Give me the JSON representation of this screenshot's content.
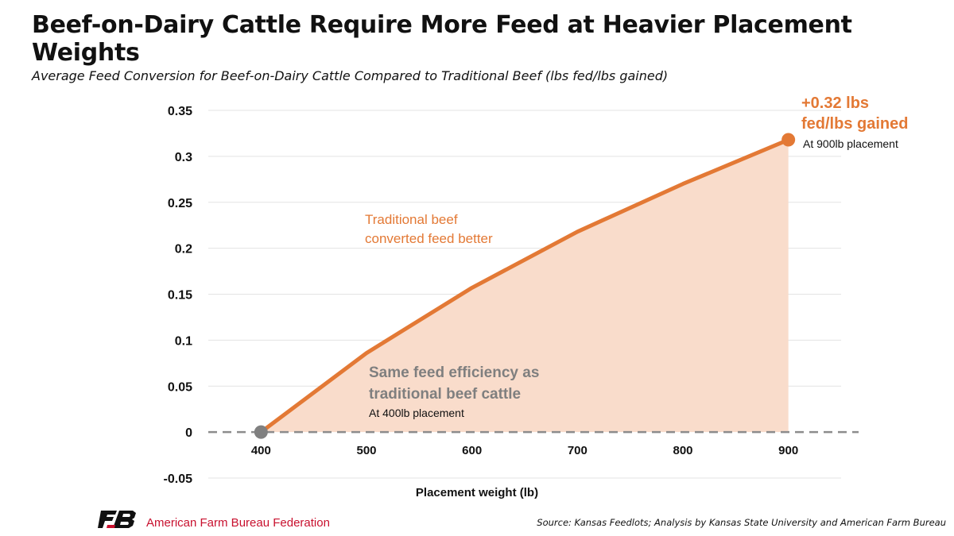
{
  "header": {
    "title": "Beef-on-Dairy Cattle Require More Feed at Heavier Placement Weights",
    "subtitle": "Average Feed Conversion for Beef-on-Dairy Cattle Compared to Traditional Beef (lbs fed/lbs gained)"
  },
  "chart_data": {
    "type": "area",
    "x": [
      400,
      500,
      600,
      700,
      800,
      900
    ],
    "series": [
      {
        "values": [
          0.0,
          0.086,
          0.157,
          0.218,
          0.27,
          0.318
        ]
      }
    ],
    "xlabel": "Placement weight (lb)",
    "ylabel": "",
    "x_ticks": [
      "400",
      "500",
      "600",
      "700",
      "800",
      "900"
    ],
    "y_ticks": [
      "0.35",
      "0.3",
      "0.25",
      "0.2",
      "0.15",
      "0.1",
      "0.05",
      "0",
      "-0.05"
    ],
    "xlim": [
      350,
      950
    ],
    "ylim": [
      -0.05,
      0.35
    ],
    "grid": true,
    "annotations": {
      "end_value_line1": "+0.32 lbs",
      "end_value_line2": "fed/lbs gained",
      "end_note": "At 900lb placement",
      "mid_line1": "Traditional beef",
      "mid_line2": "converted feed better",
      "start_line1": "Same feed efficiency as",
      "start_line2": "traditional beef cattle",
      "start_note": "At 400lb placement"
    },
    "colors": {
      "line": "#E37935",
      "fill": "#F9DCCB",
      "start_marker": "#808080",
      "zero_line": "#8C8C8C",
      "grid": "#E3E3E3",
      "start_text": "#7F7F7F"
    }
  },
  "footer": {
    "org_name": "American Farm Bureau Federation",
    "source": "Source: Kansas Feedlots; Analysis by Kansas State University and American Farm Bureau",
    "brand_color": "#C8102E"
  }
}
